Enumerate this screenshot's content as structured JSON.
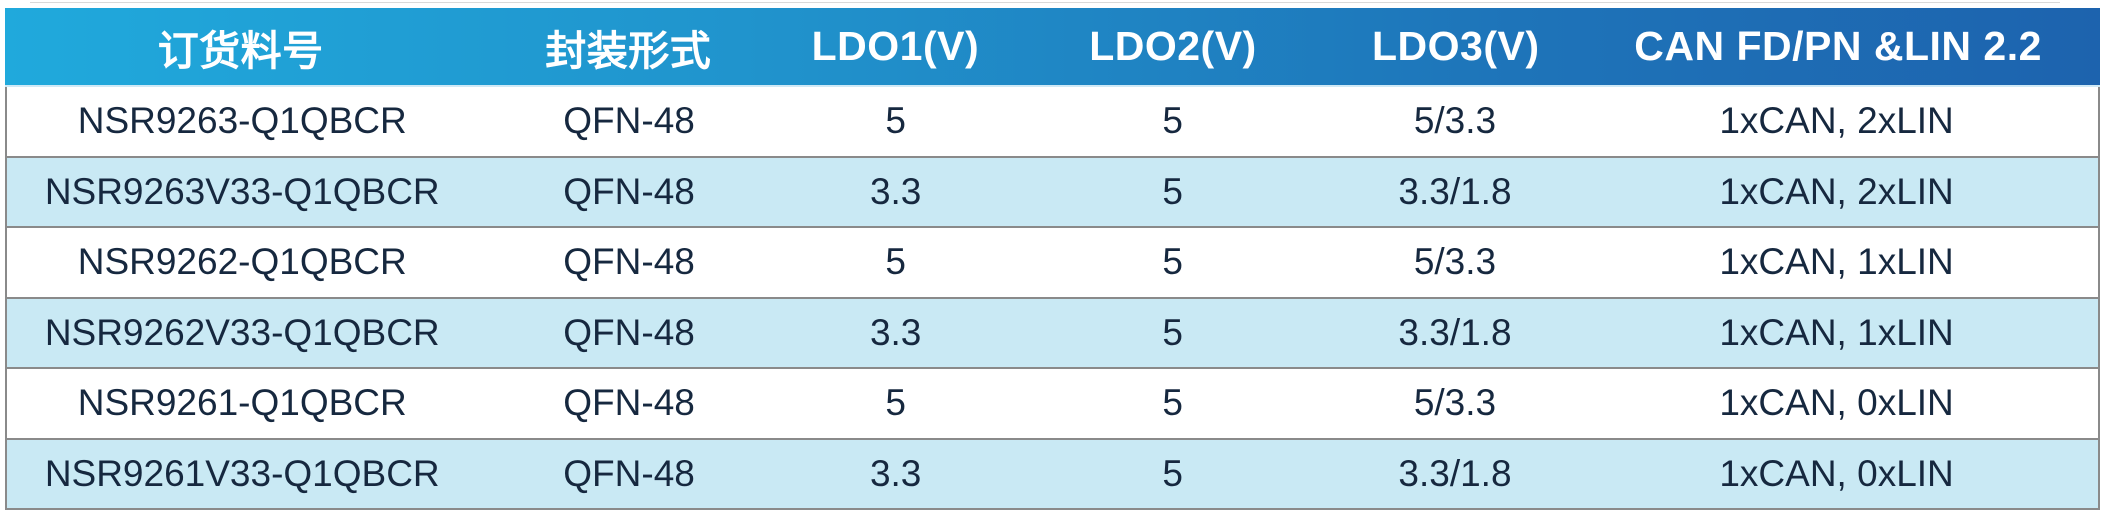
{
  "table": {
    "columns": [
      {
        "label": "订货料号"
      },
      {
        "label": "封装形式"
      },
      {
        "label": "LDO1(V)"
      },
      {
        "label": "LDO2(V)"
      },
      {
        "label": "LDO3(V)"
      },
      {
        "label": "CAN FD/PN &LIN 2.2"
      }
    ],
    "rows": [
      {
        "part_number": "NSR9263-Q1QBCR",
        "package": "QFN-48",
        "ldo1": "5",
        "ldo2": "5",
        "ldo3": "5/3.3",
        "can_lin": "1xCAN, 2xLIN"
      },
      {
        "part_number": "NSR9263V33-Q1QBCR",
        "package": "QFN-48",
        "ldo1": "3.3",
        "ldo2": "5",
        "ldo3": "3.3/1.8",
        "can_lin": "1xCAN, 2xLIN"
      },
      {
        "part_number": "NSR9262-Q1QBCR",
        "package": "QFN-48",
        "ldo1": "5",
        "ldo2": "5",
        "ldo3": "5/3.3",
        "can_lin": "1xCAN, 1xLIN"
      },
      {
        "part_number": "NSR9262V33-Q1QBCR",
        "package": "QFN-48",
        "ldo1": "3.3",
        "ldo2": "5",
        "ldo3": "3.3/1.8",
        "can_lin": "1xCAN, 1xLIN"
      },
      {
        "part_number": "NSR9261-Q1QBCR",
        "package": "QFN-48",
        "ldo1": "5",
        "ldo2": "5",
        "ldo3": "5/3.3",
        "can_lin": "1xCAN, 0xLIN"
      },
      {
        "part_number": "NSR9261V33-Q1QBCR",
        "package": "QFN-48",
        "ldo1": "3.3",
        "ldo2": "5",
        "ldo3": "3.3/1.8",
        "can_lin": "1xCAN, 0xLIN"
      }
    ]
  },
  "colors": {
    "header_gradient_start": "#20a9dc",
    "header_gradient_end": "#1d63ae",
    "header_text": "#ffffff",
    "row_default": "#ffffff",
    "row_alternate": "#c9e9f4",
    "row_border": "#8a8a8a",
    "body_text": "#16283f"
  }
}
